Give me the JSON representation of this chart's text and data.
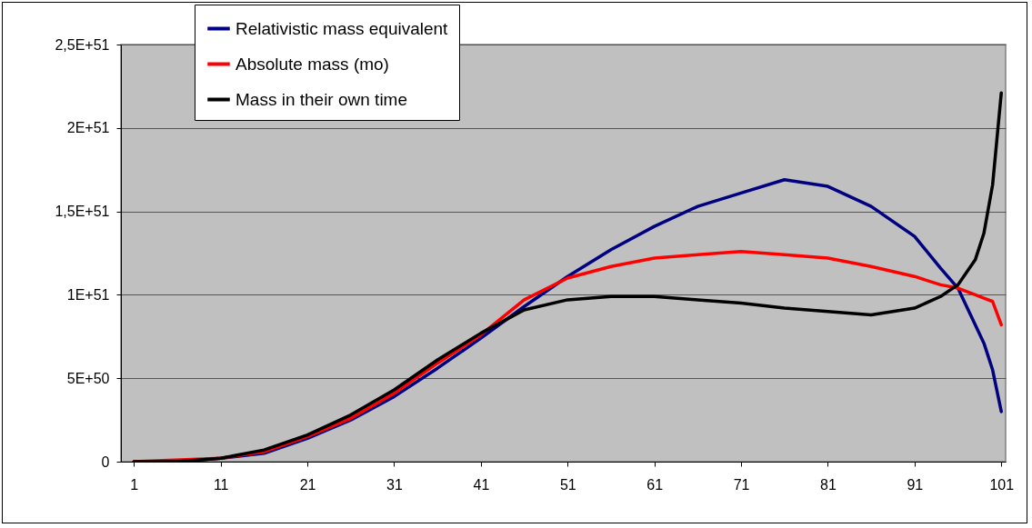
{
  "chart_data": {
    "type": "line",
    "x": [
      1,
      6,
      11,
      16,
      21,
      26,
      31,
      36,
      41,
      46,
      51,
      56,
      61,
      66,
      71,
      76,
      81,
      86,
      91,
      94,
      96,
      98,
      99,
      100,
      101
    ],
    "series": [
      {
        "name": "Relativistic mass equivalent",
        "color": "#000080",
        "values": [
          0,
          0,
          2e+49,
          5e+49,
          1.4e+50,
          2.5e+50,
          3.9e+50,
          5.6e+50,
          7.4e+50,
          9.3e+50,
          1.11e+51,
          1.27e+51,
          1.41e+51,
          1.53e+51,
          1.61e+51,
          1.69e+51,
          1.65e+51,
          1.53e+51,
          1.35e+51,
          1.16e+51,
          1.04e+51,
          8.2e+50,
          7.1e+50,
          5.5e+50,
          3e+50
        ]
      },
      {
        "name": "Absolute mass (mo)",
        "color": "#ff0000",
        "values": [
          0,
          null,
          2e+49,
          6e+49,
          1.5e+50,
          2.6e+50,
          4.1e+50,
          5.9e+50,
          7.6e+50,
          9.7e+50,
          1.1e+51,
          1.17e+51,
          1.22e+51,
          1.24e+51,
          1.26e+51,
          1.24e+51,
          1.22e+51,
          1.17e+51,
          1.11e+51,
          1.06e+51,
          1.04e+51,
          1e+51,
          9.8e+50,
          9.6e+50,
          8.2e+50
        ]
      },
      {
        "name": "Mass in their own time",
        "color": "#000000",
        "values": [
          0,
          0,
          2e+49,
          7e+49,
          1.6e+50,
          2.8e+50,
          4.3e+50,
          6.1e+50,
          7.7e+50,
          9.1e+50,
          9.7e+50,
          9.9e+50,
          9.9e+50,
          9.7e+50,
          9.5e+50,
          9.2e+50,
          9e+50,
          8.8e+50,
          9.2e+50,
          9.9e+50,
          1.06e+51,
          1.21e+51,
          1.37e+51,
          1.66e+51,
          2.21e+51
        ]
      }
    ],
    "xlim": [
      -0.5,
      101.5
    ],
    "xticks": [
      1,
      11,
      21,
      31,
      41,
      51,
      61,
      71,
      81,
      91,
      101
    ],
    "ylim": [
      0,
      2.5e+51
    ],
    "yticks": [
      0,
      {
        "value": 5e+50,
        "label": "5E+50"
      },
      {
        "value": 1e+51,
        "label": "1E+51"
      },
      {
        "value": 1.5e+51,
        "label": "1,5E+51"
      },
      {
        "value": 2e+51,
        "label": "2E+51"
      },
      {
        "value": 2.5e+51,
        "label": "2,5E+51"
      }
    ],
    "grid": "y",
    "legend": "top left"
  }
}
